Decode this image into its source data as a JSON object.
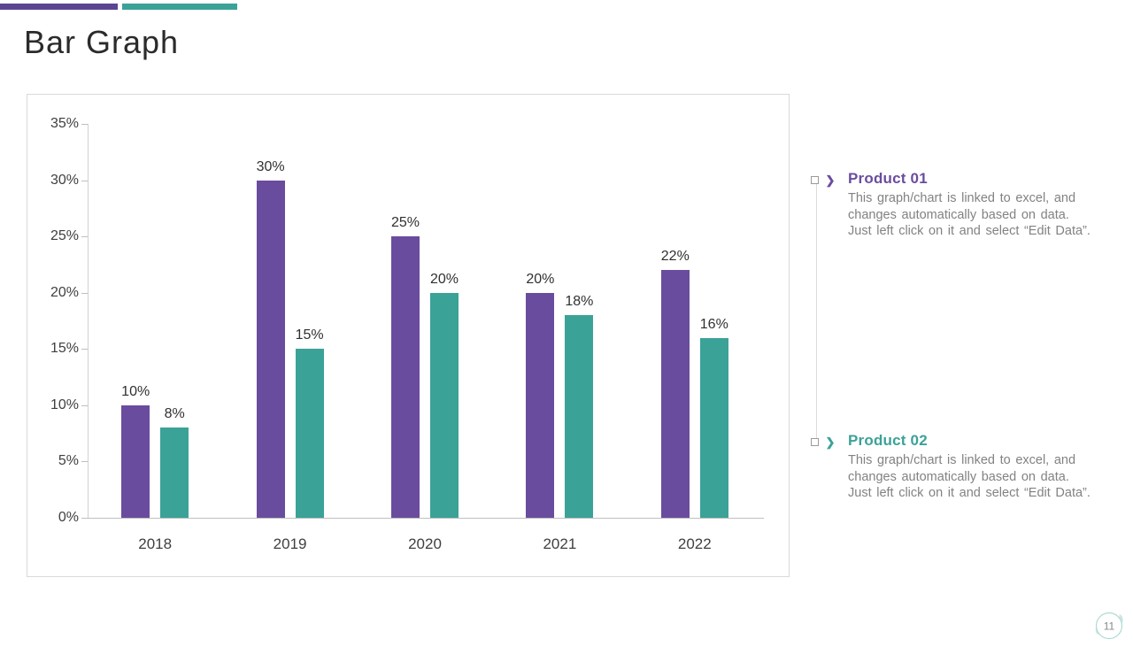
{
  "title": "Bar Graph",
  "accent": {
    "purple": "#5b4591",
    "teal": "#3ba298"
  },
  "chart_data": {
    "type": "bar",
    "categories": [
      "2018",
      "2019",
      "2020",
      "2021",
      "2022"
    ],
    "series": [
      {
        "name": "Product 01",
        "color": "#6a4c9e",
        "values": [
          10,
          30,
          25,
          20,
          22
        ]
      },
      {
        "name": "Product 02",
        "color": "#3ba298",
        "values": [
          8,
          15,
          20,
          18,
          16
        ]
      }
    ],
    "data_labels": [
      [
        "10%",
        "30%",
        "25%",
        "20%",
        "22%"
      ],
      [
        "8%",
        "15%",
        "20%",
        "18%",
        "16%"
      ]
    ],
    "title": "",
    "xlabel": "",
    "ylabel": "",
    "ylim": [
      0,
      35
    ],
    "ytick_step": 5,
    "ytick_labels": [
      "0%",
      "5%",
      "10%",
      "15%",
      "20%",
      "25%",
      "30%",
      "35%"
    ],
    "grid": false,
    "legend_position": "right-panel"
  },
  "legend": {
    "items": [
      {
        "label": "Product 01",
        "color": "#6b4c9f",
        "description_lines": [
          "This graph/chart is linked to excel, and",
          "changes automatically based on data.",
          "Just left click on it and select “Edit Data”."
        ]
      },
      {
        "label": "Product 02",
        "color": "#3ba298",
        "description_lines": [
          "This graph/chart is linked to excel, and",
          "changes automatically based on data.",
          "Just left click on it and select “Edit Data”."
        ]
      }
    ]
  },
  "page_number": "11"
}
